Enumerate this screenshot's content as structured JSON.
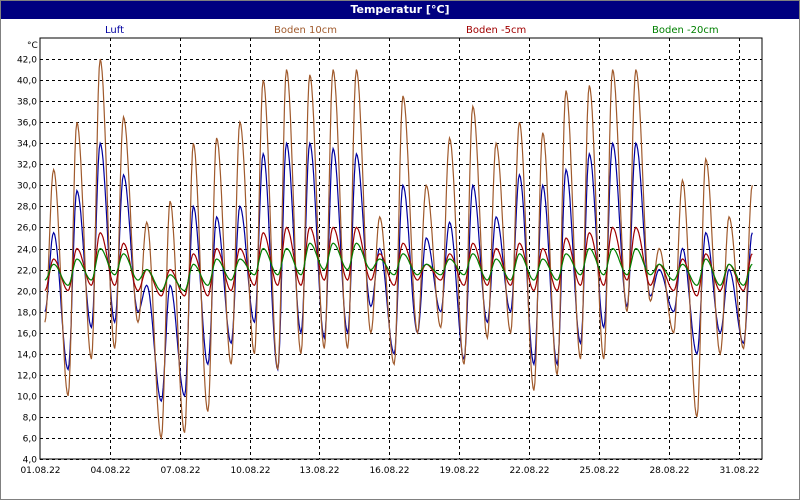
{
  "window": {
    "title": "Temperatur [°C]"
  },
  "colors": {
    "Luft": "#0000a0",
    "Boden 10cm": "#a05a2c",
    "Boden -5cm": "#a00000",
    "Boden -20cm": "#008000",
    "grid": "#000000",
    "title_bar": "#000080"
  },
  "chart_data": {
    "type": "line",
    "title": "Temperatur [°C]",
    "ylabel": "°C",
    "xlabel": "",
    "ylim": [
      4.0,
      44.0
    ],
    "xlim": [
      "2022-08-01",
      "2022-09-01"
    ],
    "y_ticks": [
      "4,0",
      "6,0",
      "8,0",
      "10,0",
      "12,0",
      "14,0",
      "16,0",
      "18,0",
      "20,0",
      "22,0",
      "24,0",
      "26,0",
      "28,0",
      "30,0",
      "32,0",
      "34,0",
      "36,0",
      "38,0",
      "40,0",
      "42,0"
    ],
    "x_ticks": [
      "01.08.22",
      "04.08.22",
      "07.08.22",
      "10.08.22",
      "13.08.22",
      "16.08.22",
      "19.08.22",
      "22.08.22",
      "25.08.22",
      "28.08.22",
      "31.08.22"
    ],
    "grid": true,
    "legend_position": "top",
    "daily": {
      "dates": [
        "2022-08-01",
        "2022-08-02",
        "2022-08-03",
        "2022-08-04",
        "2022-08-05",
        "2022-08-06",
        "2022-08-07",
        "2022-08-08",
        "2022-08-09",
        "2022-08-10",
        "2022-08-11",
        "2022-08-12",
        "2022-08-13",
        "2022-08-14",
        "2022-08-15",
        "2022-08-16",
        "2022-08-17",
        "2022-08-18",
        "2022-08-19",
        "2022-08-20",
        "2022-08-21",
        "2022-08-22",
        "2022-08-23",
        "2022-08-24",
        "2022-08-25",
        "2022-08-26",
        "2022-08-27",
        "2022-08-28",
        "2022-08-29",
        "2022-08-30",
        "2022-08-31"
      ]
    },
    "series": [
      {
        "name": "Luft",
        "daily_min": [
          18.0,
          12.5,
          16.5,
          17.0,
          18.0,
          9.5,
          10.0,
          13.0,
          15.0,
          17.0,
          12.5,
          16.0,
          15.5,
          16.0,
          18.5,
          14.0,
          16.0,
          18.0,
          13.5,
          17.0,
          18.0,
          13.0,
          13.0,
          15.0,
          16.5,
          18.5,
          19.5,
          18.0,
          14.0,
          16.0,
          15.0
        ],
        "daily_max": [
          25.5,
          29.5,
          34.0,
          31.0,
          20.5,
          20.5,
          28.0,
          27.0,
          28.0,
          33.0,
          34.0,
          34.0,
          33.5,
          33.0,
          24.0,
          30.0,
          25.0,
          26.5,
          30.0,
          27.0,
          31.0,
          30.0,
          31.5,
          33.0,
          34.0,
          34.0,
          22.0,
          24.0,
          25.5,
          22.0,
          25.5
        ]
      },
      {
        "name": "Boden 10cm",
        "daily_min": [
          17.0,
          10.0,
          13.5,
          14.5,
          17.0,
          6.0,
          6.5,
          8.5,
          13.0,
          14.0,
          12.5,
          14.0,
          14.5,
          14.5,
          16.0,
          13.0,
          16.0,
          16.5,
          13.0,
          15.5,
          16.0,
          10.5,
          12.0,
          13.5,
          13.5,
          18.0,
          19.0,
          16.0,
          8.0,
          14.0,
          14.5
        ],
        "daily_max": [
          31.5,
          36.0,
          42.0,
          36.5,
          26.5,
          28.5,
          34.0,
          34.5,
          36.0,
          40.0,
          41.0,
          40.5,
          41.0,
          41.0,
          27.0,
          38.5,
          30.0,
          34.5,
          37.5,
          34.0,
          36.0,
          35.0,
          39.0,
          39.5,
          41.0,
          41.0,
          24.0,
          30.5,
          32.5,
          27.0,
          30.0
        ]
      },
      {
        "name": "Boden -5cm",
        "daily_min": [
          20.0,
          20.0,
          20.5,
          20.5,
          20.0,
          19.5,
          19.5,
          19.5,
          20.0,
          20.5,
          20.5,
          20.5,
          21.0,
          21.0,
          21.0,
          20.5,
          21.0,
          21.0,
          20.5,
          20.5,
          20.5,
          20.0,
          20.0,
          20.5,
          20.5,
          21.0,
          20.5,
          20.0,
          19.5,
          20.0,
          20.0
        ],
        "daily_max": [
          23.0,
          24.0,
          25.5,
          24.5,
          22.0,
          22.0,
          23.5,
          24.0,
          24.0,
          25.5,
          26.0,
          26.0,
          26.0,
          26.0,
          23.5,
          24.5,
          22.5,
          23.5,
          24.5,
          24.0,
          24.5,
          24.0,
          25.0,
          25.5,
          26.0,
          26.0,
          22.5,
          23.0,
          23.5,
          22.5,
          23.5
        ]
      },
      {
        "name": "Boden -20cm",
        "daily_min": [
          21.0,
          20.5,
          21.0,
          21.5,
          21.0,
          20.0,
          20.0,
          20.5,
          21.0,
          21.5,
          21.5,
          21.5,
          22.0,
          22.0,
          22.0,
          21.5,
          21.5,
          21.5,
          21.5,
          21.0,
          21.0,
          21.0,
          21.0,
          21.5,
          21.5,
          21.5,
          21.5,
          21.0,
          20.5,
          20.5,
          20.5
        ],
        "daily_max": [
          22.5,
          23.0,
          24.0,
          23.5,
          22.0,
          21.5,
          22.5,
          23.0,
          23.0,
          24.0,
          24.0,
          24.5,
          24.5,
          24.5,
          23.0,
          23.5,
          22.5,
          23.0,
          23.5,
          23.0,
          23.5,
          23.0,
          23.5,
          24.0,
          24.0,
          24.0,
          22.5,
          22.5,
          23.0,
          22.5,
          22.5
        ]
      }
    ]
  }
}
